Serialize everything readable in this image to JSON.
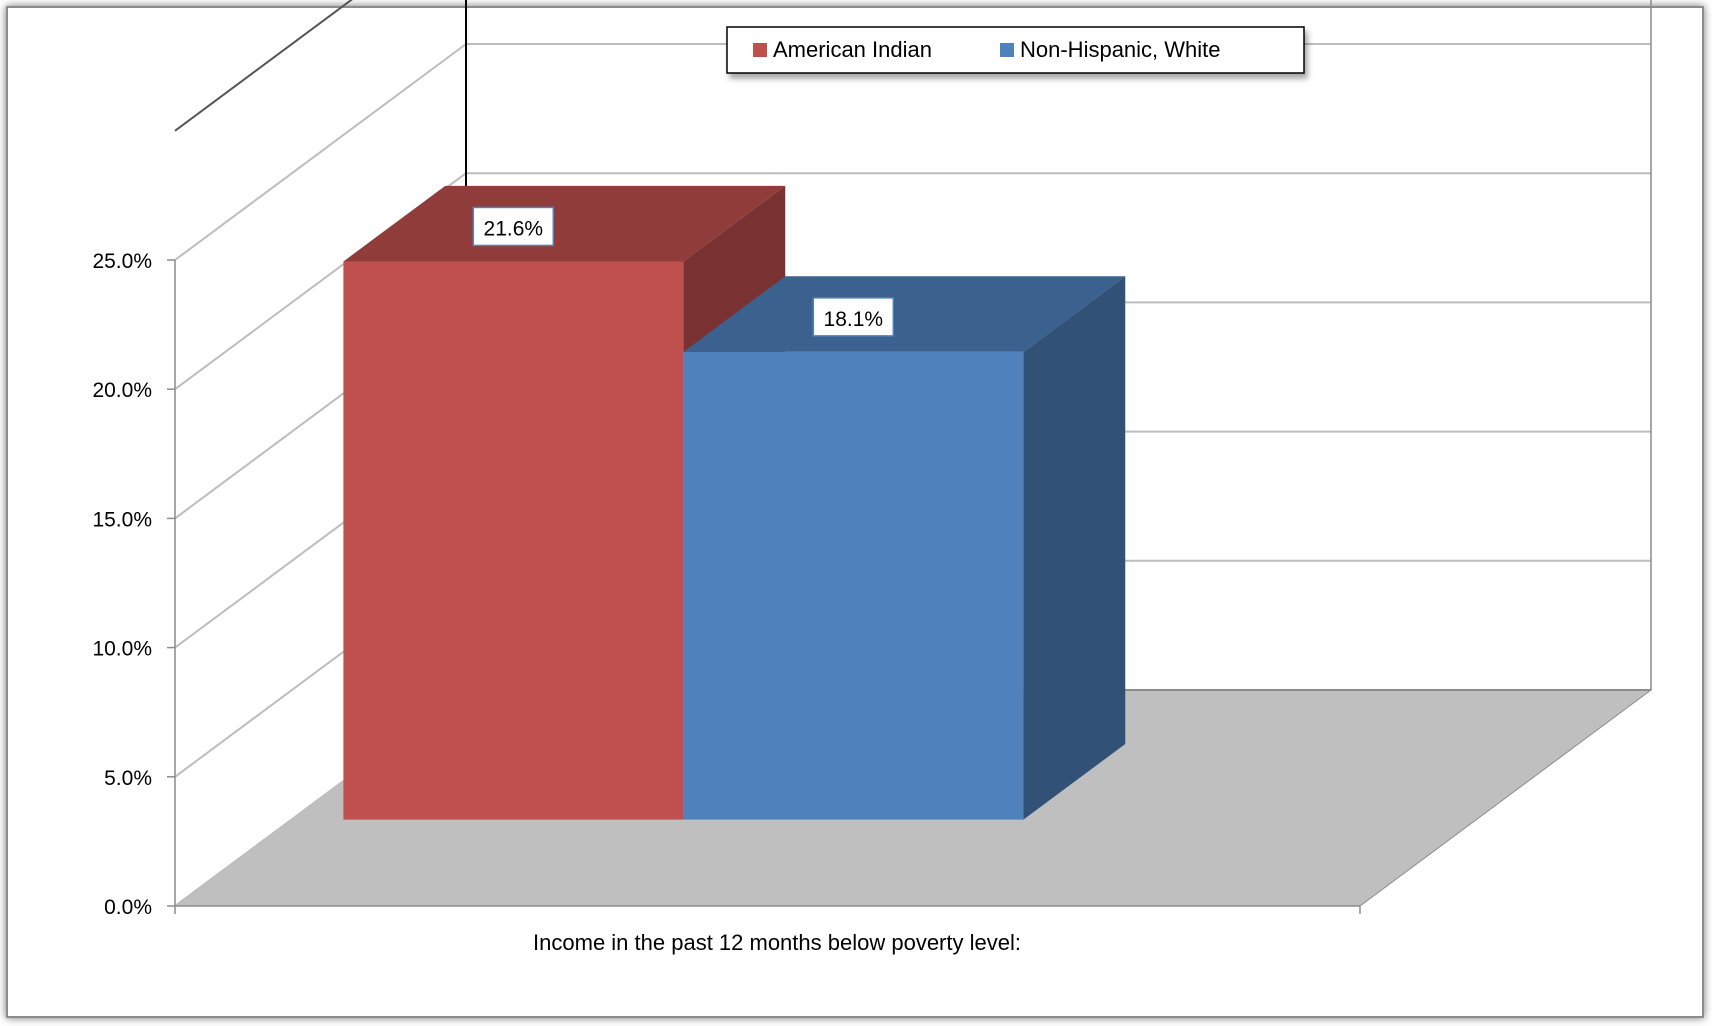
{
  "chart_data": {
    "type": "bar",
    "style": "3d-clustered-column",
    "categories": [
      "Income in the past 12 months below poverty level:"
    ],
    "series": [
      {
        "name": "American Indian",
        "values": [
          21.6
        ],
        "data_label": "21.6%",
        "color": "#C0504D"
      },
      {
        "name": "Non-Hispanic, White",
        "values": [
          18.1
        ],
        "data_label": "18.1%",
        "color": "#4F81BD"
      }
    ],
    "ylim": [
      0,
      25
    ],
    "yticks": [
      0,
      5,
      10,
      15,
      20,
      25
    ],
    "ytick_labels": [
      "0.0%",
      "5.0%",
      "10.0%",
      "15.0%",
      "20.0%",
      "25.0%"
    ],
    "xlabel": "Income in the past 12 months below poverty level:",
    "ylabel": "",
    "title": "",
    "grid": true,
    "legend_position": "top-center",
    "floor_color": "#BFBFBF"
  }
}
